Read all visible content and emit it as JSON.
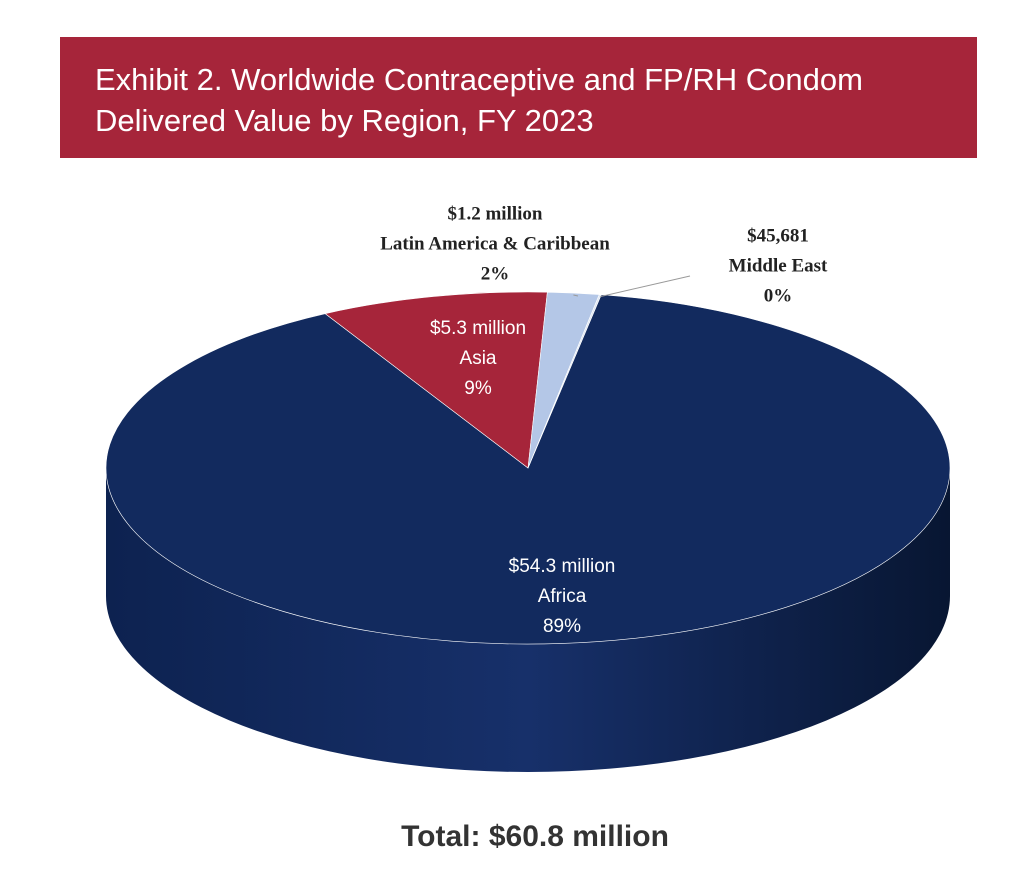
{
  "chart_data": {
    "type": "pie",
    "title": "Exhibit 2. Worldwide Contraceptive and FP/RH Condom Delivered Value by Region, FY 2023",
    "categories": [
      "Africa",
      "Asia",
      "Latin America & Caribbean",
      "Middle East"
    ],
    "values": [
      54300000,
      5300000,
      1200000,
      45681
    ],
    "value_labels": [
      "$54.3 million",
      "$5.3 million",
      "$1.2 million",
      "$45,681"
    ],
    "percent_labels": [
      "89%",
      "9%",
      "2%",
      "0%"
    ],
    "colors": [
      "#122a5e",
      "#a6253a",
      "#b4c7e7",
      "#dde6f3"
    ],
    "total_label": "Total: $60.8 million"
  }
}
